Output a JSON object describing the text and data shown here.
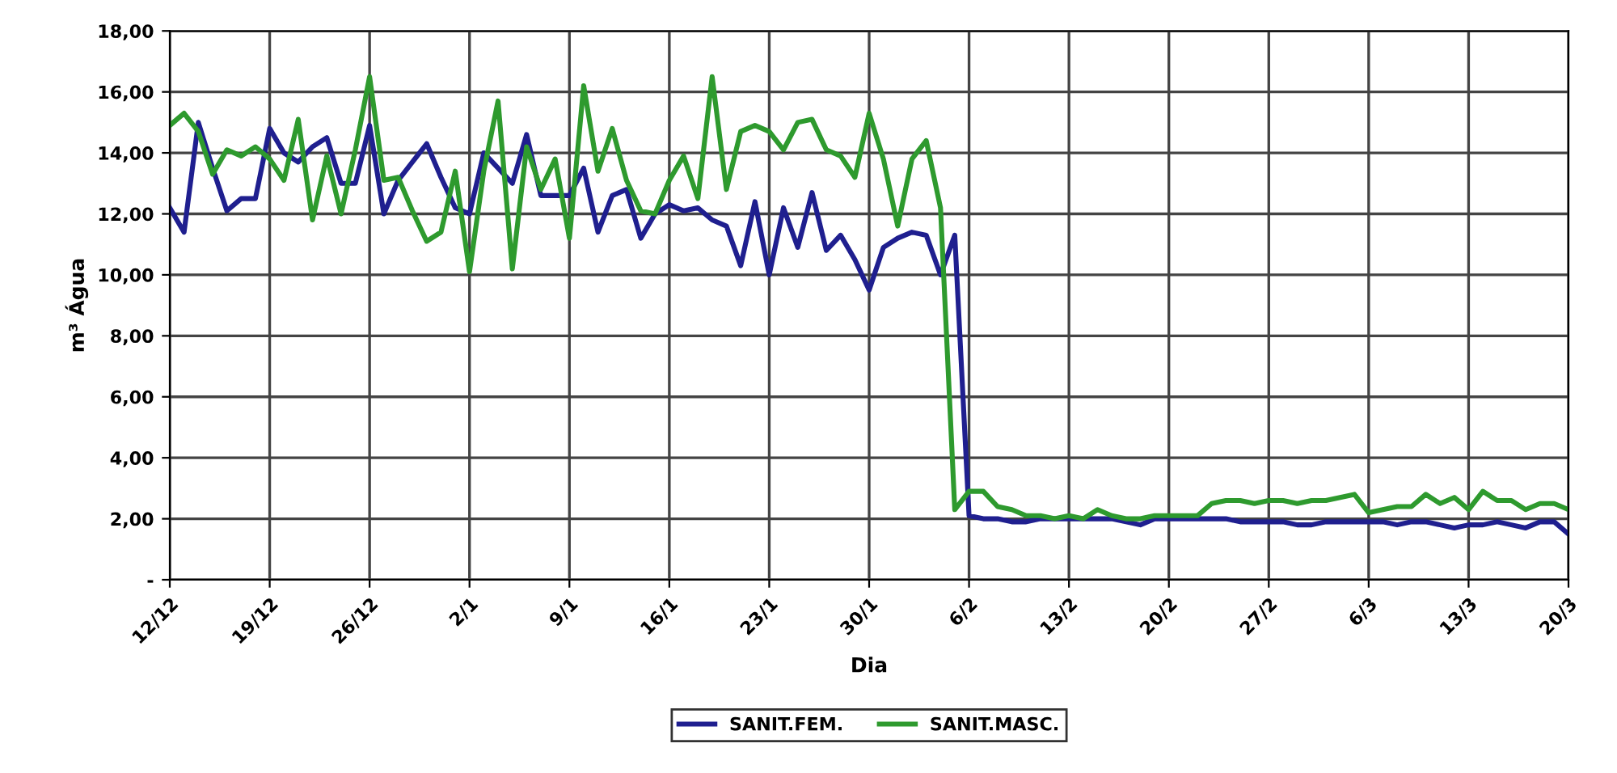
{
  "chart_data": {
    "type": "line",
    "xlabel": "Dia",
    "ylabel": "m³ Água",
    "categories": [
      "12/12",
      null,
      null,
      null,
      null,
      null,
      null,
      "19/12",
      null,
      null,
      null,
      null,
      null,
      null,
      "26/12",
      null,
      null,
      null,
      null,
      null,
      null,
      "2/1",
      null,
      null,
      null,
      null,
      null,
      null,
      "9/1",
      null,
      null,
      null,
      null,
      null,
      null,
      "16/1",
      null,
      null,
      null,
      null,
      null,
      null,
      "23/1",
      null,
      null,
      null,
      null,
      null,
      null,
      "30/1",
      null,
      null,
      null,
      null,
      null,
      null,
      "6/2",
      null,
      null,
      null,
      null,
      null,
      null,
      "13/2",
      null,
      null,
      null,
      null,
      null,
      null,
      "20/2",
      null,
      null,
      null,
      null,
      null,
      null,
      "27/2",
      null,
      null,
      null,
      null,
      null,
      null,
      "6/3",
      null,
      null,
      null,
      null,
      null,
      null,
      "13/3",
      null,
      null,
      null,
      null,
      null,
      null,
      "20/3"
    ],
    "series": [
      {
        "name": "SANIT.FEM.",
        "color": "#1f1f8f",
        "values": [
          12.2,
          11.4,
          15.0,
          13.5,
          12.1,
          12.5,
          12.5,
          14.8,
          14.0,
          13.7,
          14.2,
          14.5,
          13.0,
          13.0,
          14.9,
          12.0,
          13.1,
          13.7,
          14.3,
          13.2,
          12.2,
          12.0,
          14.0,
          13.5,
          13.0,
          14.6,
          12.6,
          12.6,
          12.6,
          13.5,
          11.4,
          12.6,
          12.8,
          11.2,
          12.0,
          12.3,
          12.1,
          12.2,
          11.8,
          11.6,
          10.3,
          12.4,
          10.0,
          12.2,
          10.9,
          12.7,
          10.8,
          11.3,
          10.5,
          9.5,
          10.9,
          11.2,
          11.4,
          11.3,
          10.0,
          11.3,
          2.1,
          2.0,
          2.0,
          1.9,
          1.9,
          2.0,
          2.0,
          2.0,
          2.0,
          2.0,
          2.0,
          1.9,
          1.8,
          2.0,
          2.0,
          2.0,
          2.0,
          2.0,
          2.0,
          1.9,
          1.9,
          1.9,
          1.9,
          1.8,
          1.8,
          1.9,
          1.9,
          1.9,
          1.9,
          1.9,
          1.8,
          1.9,
          1.9,
          1.8,
          1.7,
          1.8,
          1.8,
          1.9,
          1.8,
          1.7,
          1.9,
          1.9,
          1.5
        ]
      },
      {
        "name": "SANIT.MASC.",
        "color": "#2e9a2e",
        "values": [
          14.9,
          15.3,
          14.7,
          13.3,
          14.1,
          13.9,
          14.2,
          13.8,
          13.1,
          15.1,
          11.8,
          13.9,
          12.0,
          14.1,
          16.5,
          13.1,
          13.2,
          12.1,
          11.1,
          11.4,
          13.4,
          10.1,
          13.4,
          15.7,
          10.2,
          14.2,
          12.8,
          13.8,
          11.2,
          16.2,
          13.4,
          14.8,
          13.1,
          12.1,
          12.0,
          13.1,
          13.9,
          12.5,
          16.5,
          12.8,
          14.7,
          14.9,
          14.7,
          14.1,
          15.0,
          15.1,
          14.1,
          13.9,
          13.2,
          15.3,
          13.8,
          11.6,
          13.8,
          14.4,
          12.2,
          2.3,
          2.9,
          2.9,
          2.4,
          2.3,
          2.1,
          2.1,
          2.0,
          2.1,
          2.0,
          2.3,
          2.1,
          2.0,
          2.0,
          2.1,
          2.1,
          2.1,
          2.1,
          2.5,
          2.6,
          2.6,
          2.5,
          2.6,
          2.6,
          2.5,
          2.6,
          2.6,
          2.7,
          2.8,
          2.2,
          2.3,
          2.4,
          2.4,
          2.8,
          2.5,
          2.7,
          2.3,
          2.9,
          2.6,
          2.6,
          2.3,
          2.5,
          2.5,
          2.3
        ]
      }
    ],
    "ylim": [
      0,
      18
    ],
    "yticks": [
      {
        "value": 0,
        "label": "-"
      },
      {
        "value": 2,
        "label": "2,00"
      },
      {
        "value": 4,
        "label": "4,00"
      },
      {
        "value": 6,
        "label": "6,00"
      },
      {
        "value": 8,
        "label": "8,00"
      },
      {
        "value": 10,
        "label": "10,00"
      },
      {
        "value": 12,
        "label": "12,00"
      },
      {
        "value": 14,
        "label": "14,00"
      },
      {
        "value": 16,
        "label": "16,00"
      },
      {
        "value": 18,
        "label": "18,00"
      }
    ],
    "grid": true,
    "legend": "bottom",
    "marker": "none",
    "line_style": "solid"
  }
}
